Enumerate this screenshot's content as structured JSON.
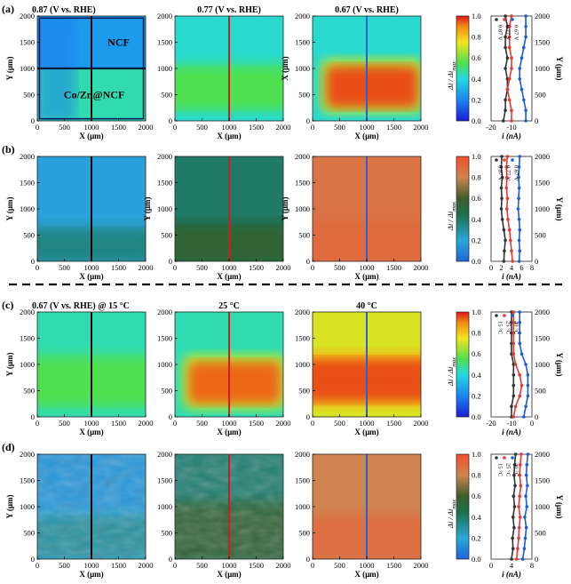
{
  "chart_data": {
    "type": "heatmap",
    "rows": [
      {
        "label": "(a)",
        "maps": [
          {
            "title": "0.87 (V vs. RHE)",
            "ylabel": "Y (μm)",
            "xlabel": "X (μm)",
            "scheme": "jet",
            "regions": [
              {
                "name": "NCF",
                "level": 0.25
              },
              {
                "name": "Co/Zn@NCF",
                "level": 0.45
              }
            ],
            "line_x": 1000,
            "line_color": "#000000",
            "box": true
          },
          {
            "title": "0.77 (V vs. RHE)",
            "ylabel": "",
            "xlabel": "X (μm)",
            "scheme": "jet",
            "band": {
              "y": [
                250,
                1000
              ],
              "level": 0.55
            },
            "background_level": 0.42,
            "line_x": 1000,
            "line_color": "#d11d1d"
          },
          {
            "title": "0.67 (V vs. RHE)",
            "ylabel": "X (μm)",
            "xlabel": "X (μm)",
            "scheme": "jet",
            "band": {
              "x": [
                250,
                1950
              ],
              "y": [
                250,
                1050
              ],
              "level": 0.95
            },
            "background_level": 0.42,
            "line_x": 1000,
            "line_color": "#2b5fd6"
          }
        ],
        "colorbar": {
          "scheme": "jet",
          "ticks": [
            0.0,
            0.2,
            0.4,
            0.6,
            0.8,
            1.0
          ],
          "label": "Δi / Δi",
          "label_sub": "max"
        },
        "profile": {
          "xlim": [
            -20,
            0
          ],
          "xticks": [
            -20,
            -10
          ],
          "xlabel": "i (nA)",
          "ylabel": "Y (μm)",
          "yticks": [
            0,
            500,
            1000,
            1500,
            2000
          ],
          "y": [
            0,
            200,
            400,
            600,
            800,
            1000,
            1200,
            1400,
            1600,
            1800,
            2000
          ],
          "series": [
            {
              "name": "0.87 V",
              "color": "#333333",
              "values": [
                -14,
                -13,
                -13,
                -12,
                -12,
                -13,
                -12,
                -13,
                -13,
                -12,
                -13
              ]
            },
            {
              "name": "0.77 V",
              "color": "#e53935",
              "values": [
                -10,
                -10,
                -11,
                -12,
                -11,
                -10,
                -10,
                -11,
                -11,
                -11,
                -10
              ]
            },
            {
              "name": "0.67 V",
              "color": "#1e5bd8",
              "values": [
                -3,
                -3,
                -4,
                -5,
                -6,
                -6,
                -5,
                -4,
                -3,
                -3,
                -3
              ]
            }
          ]
        }
      },
      {
        "label": "(b)",
        "maps": [
          {
            "title": "",
            "ylabel": "Y (μm)",
            "xlabel": "X (μm)",
            "scheme": "blue",
            "band": {
              "y": [
                0,
                600
              ],
              "level": 0.35
            },
            "background_level": 0.18,
            "line_x": 1000,
            "line_color": "#000000"
          },
          {
            "title": "",
            "ylabel": "Y (μm)",
            "xlabel": "X (μm)",
            "scheme": "blue",
            "band": {
              "y": [
                0,
                650
              ],
              "level": 0.55
            },
            "background_level": 0.4,
            "line_x": 1000,
            "line_color": "#d11d1d"
          },
          {
            "title": "",
            "ylabel": "Y (μm)",
            "xlabel": "X (μm)",
            "scheme": "blue",
            "band": {
              "y": [
                0,
                700
              ],
              "level": 0.9
            },
            "background_level": 0.86,
            "line_x": 1000,
            "line_color": "#2b5fd6"
          }
        ],
        "colorbar": {
          "scheme": "blue",
          "ticks": [
            0.0,
            0.2,
            0.4,
            0.6,
            0.8,
            1.0
          ],
          "label": "Δi / Δi",
          "label_sub": "max"
        },
        "profile": {
          "xlim": [
            0,
            8
          ],
          "xticks": [
            0,
            2,
            4,
            6,
            8
          ],
          "xlabel": "i (nA)",
          "ylabel": "Y (μm)",
          "yticks": [
            0,
            500,
            1000,
            1500,
            2000
          ],
          "y": [
            0,
            200,
            400,
            600,
            800,
            1000,
            1200,
            1400,
            1600,
            1800,
            2000
          ],
          "series": [
            {
              "name": "0.87 V",
              "color": "#333333",
              "values": [
                2.5,
                2.6,
                2.8,
                2.5,
                2.2,
                2.0,
                2.1,
                2.0,
                2.2,
                2.0,
                2.1
              ]
            },
            {
              "name": "0.77 V",
              "color": "#e53935",
              "values": [
                4.2,
                4.0,
                3.8,
                3.6,
                3.3,
                3.1,
                3.2,
                3.0,
                3.1,
                3.0,
                3.2
              ]
            },
            {
              "name": "0.67 V",
              "color": "#1e5bd8",
              "values": [
                5.5,
                5.6,
                5.5,
                5.6,
                5.5,
                5.3,
                5.4,
                5.5,
                5.4,
                5.5,
                5.6
              ]
            }
          ]
        }
      },
      {
        "label": "(c)",
        "maps": [
          {
            "title": "0.67 (V vs. RHE) @ 15 °C",
            "ylabel": "Y (μm)",
            "xlabel": "X (μm)",
            "scheme": "jet",
            "band": {
              "y": [
                250,
                1100
              ],
              "level": 0.55
            },
            "background_level": 0.45,
            "line_x": 1000,
            "line_color": "#000000"
          },
          {
            "title": "25 °C",
            "ylabel": "",
            "xlabel": "X (μm)",
            "scheme": "jet",
            "band": {
              "x": [
                250,
                1950
              ],
              "y": [
                250,
                1050
              ],
              "level": 0.93
            },
            "background_level": 0.45,
            "line_x": 1000,
            "line_color": "#d11d1d"
          },
          {
            "title": "40 °C",
            "ylabel": "",
            "xlabel": "X (μm)",
            "scheme": "jet",
            "band": {
              "y": [
                300,
                1100
              ],
              "level": 0.95
            },
            "background_level": 0.72,
            "line_x": 1000,
            "line_color": "#2b5fd6"
          }
        ],
        "colorbar": {
          "scheme": "jet",
          "ticks": [
            0.0,
            0.2,
            0.4,
            0.6,
            0.8,
            1.0
          ],
          "label": "Δi / Δi",
          "label_sub": "max"
        },
        "profile": {
          "xlim": [
            -20,
            0
          ],
          "xticks": [
            -20,
            -10,
            0
          ],
          "xlabel": "i (nA)",
          "ylabel": "Y (μm)",
          "yticks": [
            0,
            500,
            1000,
            1500,
            2000
          ],
          "y": [
            0,
            200,
            400,
            600,
            800,
            1000,
            1200,
            1400,
            1600,
            1800,
            2000
          ],
          "series": [
            {
              "name": "15 °C",
              "color": "#333333",
              "values": [
                -10,
                -10,
                -9,
                -9,
                -9,
                -9,
                -10,
                -10,
                -10,
                -10,
                -10
              ]
            },
            {
              "name": "25 °C",
              "color": "#e53935",
              "values": [
                -9,
                -8,
                -6,
                -5,
                -6,
                -8,
                -9,
                -9,
                -9,
                -9,
                -9
              ]
            },
            {
              "name": "40 °C",
              "color": "#1e5bd8",
              "values": [
                -4,
                -3,
                -2,
                -2,
                -2,
                -3,
                -5,
                -6,
                -6,
                -6,
                -6
              ]
            }
          ]
        }
      },
      {
        "label": "(d)",
        "maps": [
          {
            "title": "",
            "ylabel": "Y (μm)",
            "xlabel": "X (μm)",
            "scheme": "blue",
            "band": {
              "y": [
                0,
                800
              ],
              "level": 0.3
            },
            "background_level": 0.15,
            "noise": true,
            "line_x": 1000,
            "line_color": "#000000"
          },
          {
            "title": "",
            "ylabel": "",
            "xlabel": "X (μm)",
            "scheme": "blue",
            "band": {
              "y": [
                0,
                1000
              ],
              "level": 0.55
            },
            "background_level": 0.38,
            "noise": true,
            "line_x": 1000,
            "line_color": "#d11d1d"
          },
          {
            "title": "",
            "ylabel": "",
            "xlabel": "X (μm)",
            "scheme": "blue",
            "band": {
              "y": [
                0,
                800
              ],
              "level": 0.88
            },
            "background_level": 0.8,
            "line_x": 1000,
            "line_color": "#2b5fd6"
          }
        ],
        "colorbar": {
          "scheme": "blue",
          "ticks": [
            0.0,
            0.2,
            0.4,
            0.6,
            0.8,
            1.0
          ],
          "label": "Δi / Δi",
          "label_sub": "max"
        },
        "profile": {
          "xlim": [
            0,
            8
          ],
          "xticks": [
            0,
            4,
            8
          ],
          "xlabel": "i (nA)",
          "ylabel": "Y (μm)",
          "yticks": [
            0,
            500,
            1000,
            1500,
            2000
          ],
          "y": [
            0,
            200,
            400,
            600,
            800,
            1000,
            1200,
            1400,
            1600,
            1800,
            2000
          ],
          "series": [
            {
              "name": "15 °C",
              "color": "#333333",
              "values": [
                4.0,
                4.3,
                4.2,
                4.5,
                4.3,
                4.6,
                4.4,
                4.7,
                4.5,
                4.6,
                4.8
              ]
            },
            {
              "name": "25 °C",
              "color": "#e53935",
              "values": [
                5.0,
                5.2,
                5.4,
                5.5,
                5.7,
                5.4,
                5.6,
                5.8,
                5.6,
                5.7,
                5.9
              ]
            },
            {
              "name": "40 °C",
              "color": "#1e5bd8",
              "values": [
                6.2,
                6.5,
                6.7,
                6.9,
                6.6,
                7.0,
                6.8,
                7.1,
                6.9,
                7.0,
                7.2
              ]
            }
          ]
        }
      }
    ],
    "map_xlim": [
      0,
      2000
    ],
    "map_ylim": [
      0,
      2000
    ],
    "map_ticks": [
      0,
      500,
      1000,
      1500,
      2000
    ]
  }
}
